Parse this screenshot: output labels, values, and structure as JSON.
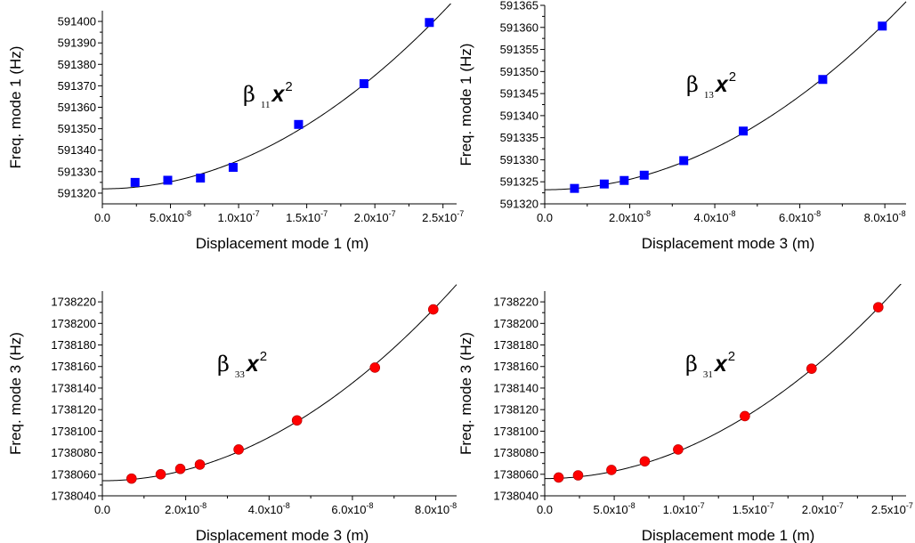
{
  "chart_data": [
    {
      "type": "scatter",
      "title": "",
      "xlabel": "Displacement mode 1 (m)",
      "ylabel": "Freq. mode 1 (Hz)",
      "xlim": [
        0,
        2.6e-07
      ],
      "ylim": [
        591315,
        591405
      ],
      "x_ticks": [
        {
          "value": 0,
          "label": "0.0",
          "exp": ""
        },
        {
          "value": 5e-08,
          "label": "5.0x10",
          "exp": "-8"
        },
        {
          "value": 1e-07,
          "label": "1.0x10",
          "exp": "-7"
        },
        {
          "value": 1.5e-07,
          "label": "1.5x10",
          "exp": "-7"
        },
        {
          "value": 2e-07,
          "label": "2.0x10",
          "exp": "-7"
        },
        {
          "value": 2.5e-07,
          "label": "2.5x10",
          "exp": "-7"
        }
      ],
      "y_ticks": [
        "591320",
        "591330",
        "591340",
        "591350",
        "591360",
        "591370",
        "591380",
        "591390",
        "591400"
      ],
      "annotation": {
        "beta": "β",
        "sub": "11",
        "var": "x",
        "exp": "2"
      },
      "marker": "square",
      "marker_color": "#0000ff",
      "series": [
        {
          "x": [
            2.4e-08,
            4.8e-08,
            7.2e-08,
            9.6e-08,
            1.44e-07,
            1.92e-07,
            2.4e-07
          ],
          "y": [
            591325,
            591326,
            591327,
            591332,
            591352,
            591371,
            591399.5
          ]
        }
      ],
      "fit": {
        "a": 591322.0,
        "c": 1320000000000000.0
      }
    },
    {
      "type": "scatter",
      "title": "",
      "xlabel": "Displacement mode 3 (m)",
      "ylabel": "Freq. mode 1 (Hz)",
      "xlim": [
        0,
        8.5e-08
      ],
      "ylim": [
        591320,
        591365
      ],
      "x_ticks": [
        {
          "value": 0,
          "label": "0.0",
          "exp": ""
        },
        {
          "value": 2e-08,
          "label": "2.0x10",
          "exp": "-8"
        },
        {
          "value": 4e-08,
          "label": "4.0x10",
          "exp": "-8"
        },
        {
          "value": 6e-08,
          "label": "6.0x10",
          "exp": "-8"
        },
        {
          "value": 8e-08,
          "label": "8.0x10",
          "exp": "-8"
        }
      ],
      "y_ticks": [
        "591320",
        "591325",
        "591330",
        "591335",
        "591340",
        "591345",
        "591350",
        "591355",
        "591360",
        "591365"
      ],
      "annotation": {
        "beta": "β",
        "sub": "13",
        "var": "x",
        "exp": "2"
      },
      "marker": "square",
      "marker_color": "#0000ff",
      "series": [
        {
          "x": [
            7e-09,
            1.4e-08,
            1.87e-08,
            2.34e-08,
            3.27e-08,
            4.67e-08,
            6.54e-08,
            7.94e-08
          ],
          "y": [
            591323.5,
            591324.5,
            591325.3,
            591326.5,
            591329.8,
            591336.5,
            591348.2,
            591360.3
          ]
        }
      ],
      "fit": {
        "a": 591323.2,
        "c": 5900000000000000.0
      }
    },
    {
      "type": "scatter",
      "title": "",
      "xlabel": "Displacement mode 3 (m)",
      "ylabel": "Freq. mode 3 (Hz)",
      "xlim": [
        0,
        8.5e-08
      ],
      "ylim": [
        1738040,
        1738230
      ],
      "x_ticks": [
        {
          "value": 0,
          "label": "0.0",
          "exp": ""
        },
        {
          "value": 2e-08,
          "label": "2.0x10",
          "exp": "-8"
        },
        {
          "value": 4e-08,
          "label": "4.0x10",
          "exp": "-8"
        },
        {
          "value": 6e-08,
          "label": "6.0x10",
          "exp": "-8"
        },
        {
          "value": 8e-08,
          "label": "8.0x10",
          "exp": "-8"
        }
      ],
      "y_ticks": [
        "1738040",
        "1738060",
        "1738080",
        "1738100",
        "1738120",
        "1738140",
        "1738160",
        "1738180",
        "1738200",
        "1738220"
      ],
      "annotation": {
        "beta": "β",
        "sub": "33",
        "var": "x",
        "exp": "2"
      },
      "marker": "circle",
      "marker_color": "#ff0000",
      "series": [
        {
          "x": [
            7e-09,
            1.4e-08,
            1.87e-08,
            2.34e-08,
            3.27e-08,
            4.67e-08,
            6.54e-08,
            7.94e-08
          ],
          "y": [
            1738056,
            1738060,
            1738065,
            1738069,
            1738083,
            1738110,
            1738159,
            1738213
          ]
        }
      ],
      "fit": {
        "a": 1738054,
        "c": 2.52e+16
      }
    },
    {
      "type": "scatter",
      "title": "",
      "xlabel": "Displacement mode 1 (m)",
      "ylabel": "Freq. mode 3 (Hz)",
      "xlim": [
        0,
        2.6e-07
      ],
      "ylim": [
        1738040,
        1738230
      ],
      "x_ticks": [
        {
          "value": 0,
          "label": "0.0",
          "exp": ""
        },
        {
          "value": 5e-08,
          "label": "5.0x10",
          "exp": "-8"
        },
        {
          "value": 1e-07,
          "label": "1.0x10",
          "exp": "-7"
        },
        {
          "value": 1.5e-07,
          "label": "1.5x10",
          "exp": "-7"
        },
        {
          "value": 2e-07,
          "label": "2.0x10",
          "exp": "-7"
        },
        {
          "value": 2.5e-07,
          "label": "2.5x10",
          "exp": "-7"
        }
      ],
      "y_ticks": [
        "1738040",
        "1738060",
        "1738080",
        "1738100",
        "1738120",
        "1738140",
        "1738160",
        "1738180",
        "1738200",
        "1738220"
      ],
      "annotation": {
        "beta": "β",
        "sub": "31",
        "var": "x",
        "exp": "2"
      },
      "marker": "circle",
      "marker_color": "#ff0000",
      "series": [
        {
          "x": [
            1e-08,
            2.4e-08,
            4.8e-08,
            7.2e-08,
            9.6e-08,
            1.44e-07,
            1.92e-07,
            2.4e-07
          ],
          "y": [
            1738057,
            1738059,
            1738064,
            1738072,
            1738083,
            1738114,
            1738158,
            1738215
          ]
        }
      ],
      "fit": {
        "a": 1738056,
        "c": 2750000000000000.0
      }
    }
  ]
}
